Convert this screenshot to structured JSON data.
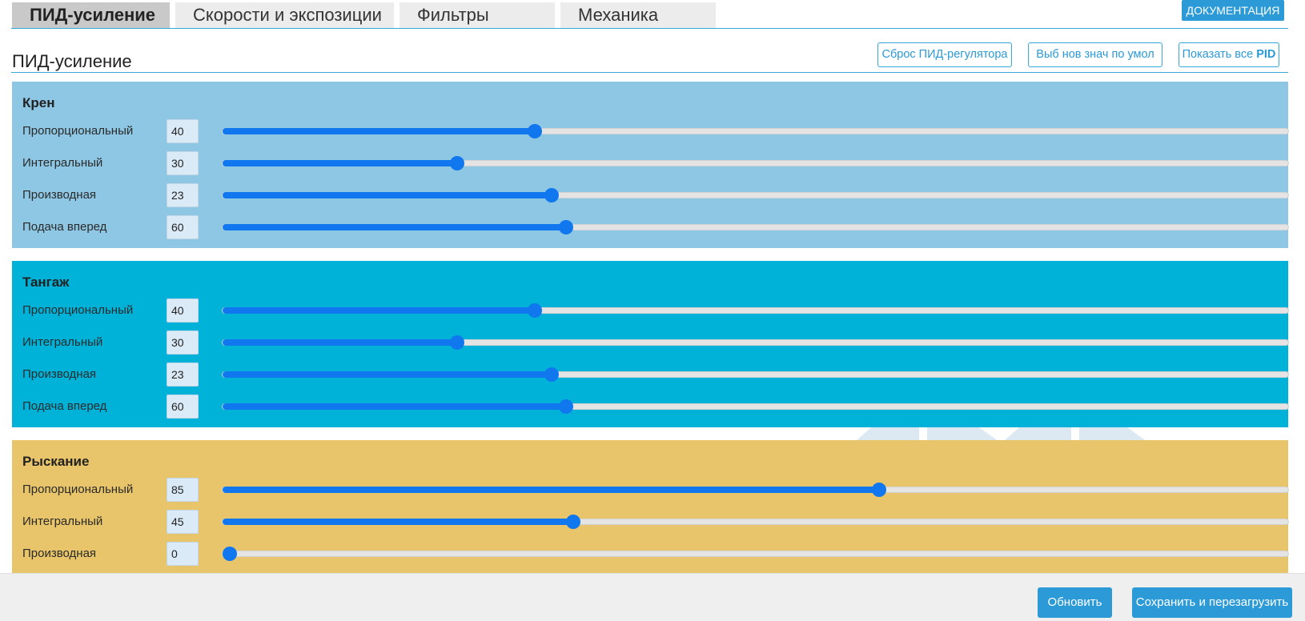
{
  "tabs": [
    {
      "label": "ПИД-усиление",
      "active": true
    },
    {
      "label": "Скорости и экспозиции",
      "active": false
    },
    {
      "label": "Фильтры",
      "active": false
    },
    {
      "label": "Механика",
      "active": false
    }
  ],
  "doc_button": "ДОКУМЕНТАЦИЯ",
  "section": {
    "title": "ПИД-усиление",
    "buttons": {
      "reset": "Сброс ПИД-регулятора",
      "defaults": "Выб нов знач по умол",
      "show_all_prefix": "Показать все ",
      "show_all_bold": "PID"
    }
  },
  "panels": [
    {
      "name": "Крен",
      "color": "#8ec7e4",
      "rows": [
        {
          "label": "Пропорциональный",
          "value": "40",
          "slider_fraction": 0.293
        },
        {
          "label": "Интегральный",
          "value": "30",
          "slider_fraction": 0.22
        },
        {
          "label": "Производная",
          "value": "23",
          "slider_fraction": 0.309
        },
        {
          "label": "Подача вперед",
          "value": "60",
          "slider_fraction": 0.322
        }
      ]
    },
    {
      "name": "Тангаж",
      "color": "#00b2d8",
      "rows": [
        {
          "label": "Пропорциональный",
          "value": "40",
          "slider_fraction": 0.293
        },
        {
          "label": "Интегральный",
          "value": "30",
          "slider_fraction": 0.22
        },
        {
          "label": "Производная",
          "value": "23",
          "slider_fraction": 0.309
        },
        {
          "label": "Подача вперед",
          "value": "60",
          "slider_fraction": 0.322
        }
      ]
    },
    {
      "name": "Рыскание",
      "color": "#e8c46a",
      "rows": [
        {
          "label": "Пропорциональный",
          "value": "85",
          "slider_fraction": 0.616
        },
        {
          "label": "Интегральный",
          "value": "45",
          "slider_fraction": 0.329
        },
        {
          "label": "Производная",
          "value": "0",
          "slider_fraction": 0.0
        }
      ]
    }
  ],
  "footer": {
    "refresh": "Обновить",
    "save_reboot": "Сохранить и перезагрузить"
  }
}
